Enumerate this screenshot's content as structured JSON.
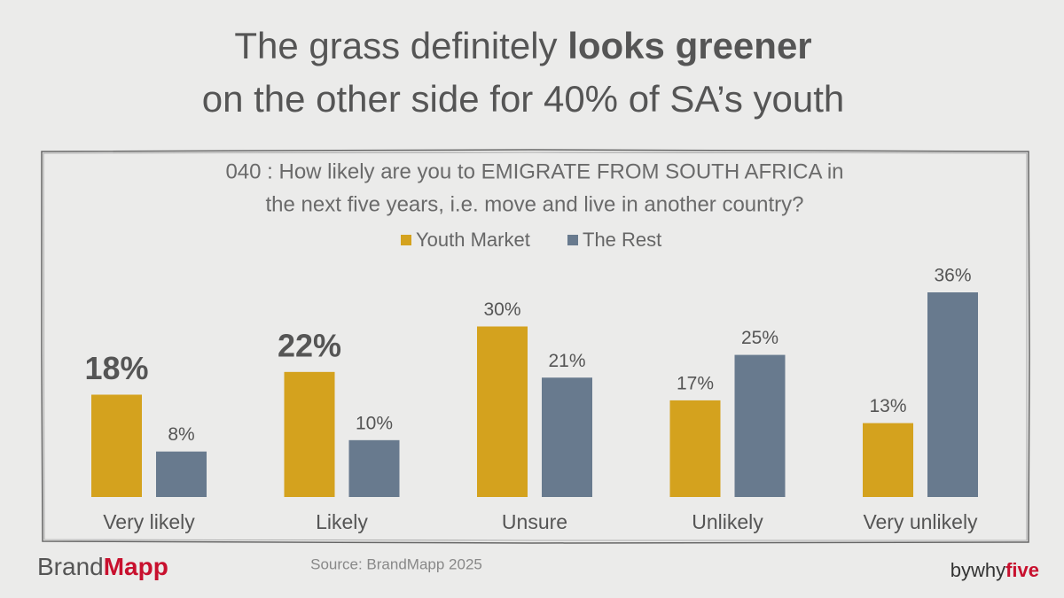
{
  "chart_data": {
    "type": "bar",
    "title_start": "The grass definitely",
    "title_bold": "looks greener",
    "title_line2": "on the other side for 40% of SA’s youth",
    "subtitle_lines": [
      "040 : How likely are you to EMIGRATE FROM SOUTH AFRICA in",
      "the next five years, i.e. move and live in another country?"
    ],
    "categories": [
      "Very likely",
      "Likely",
      "Unsure",
      "Unlikely",
      "Very unlikely"
    ],
    "series": [
      {
        "name": "Youth Market",
        "color": "#d4a21e",
        "values": [
          18,
          22,
          30,
          17,
          13
        ],
        "value_labels": [
          "18%",
          "22%",
          "30%",
          "17%",
          "13%"
        ]
      },
      {
        "name": "The Rest",
        "color": "#687a8e",
        "values": [
          8,
          10,
          21,
          25,
          36
        ],
        "value_labels": [
          "8%",
          "10%",
          "21%",
          "25%",
          "36%"
        ]
      }
    ],
    "source": "Source: BrandMapp 2025",
    "brand": {
      "first": "Brand",
      "second": "Mapp"
    },
    "credit": {
      "by": "by",
      "why": "why",
      "five": "five"
    }
  }
}
